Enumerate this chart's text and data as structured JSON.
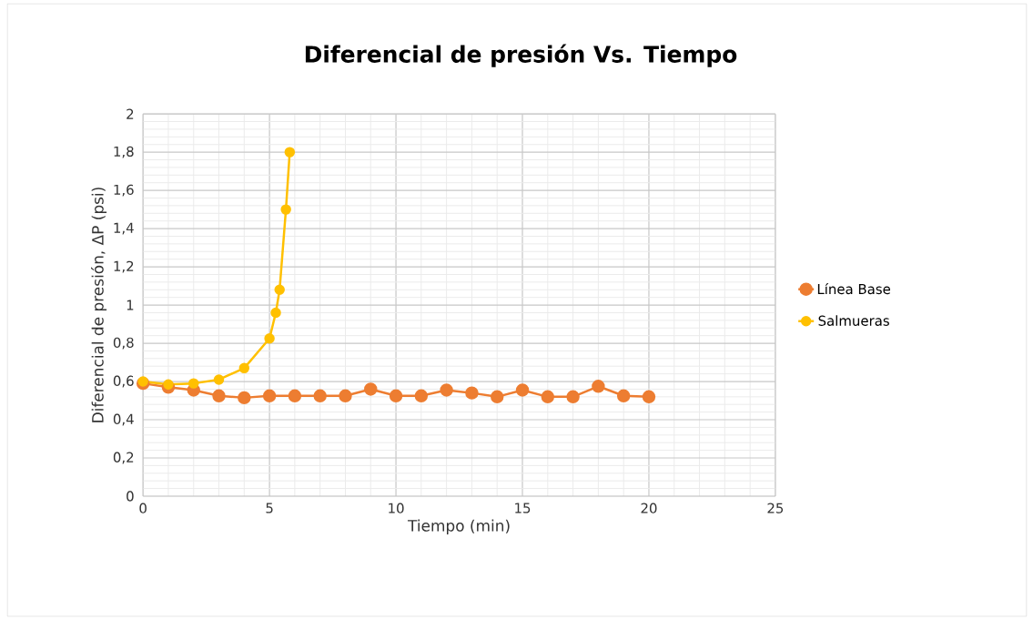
{
  "chart_data": {
    "type": "line",
    "title": "Diferencial de presión Vs. Tiempo",
    "xlabel": "Tiempo (min)",
    "ylabel": "Diferencial de presión, ΔP (psi)",
    "series": [
      {
        "name": "Línea Base",
        "color": "#ed7d31",
        "x": [
          0,
          1,
          2,
          3,
          4,
          5,
          6,
          7,
          8,
          9,
          10,
          11,
          12,
          13,
          14,
          15,
          16,
          17,
          18,
          19,
          20
        ],
        "values": [
          0.59,
          0.57,
          0.555,
          0.525,
          0.515,
          0.525,
          0.525,
          0.525,
          0.525,
          0.56,
          0.525,
          0.525,
          0.555,
          0.54,
          0.52,
          0.555,
          0.52,
          0.52,
          0.575,
          0.525,
          0.52
        ]
      },
      {
        "name": "Salmueras",
        "color": "#ffc000",
        "x": [
          0,
          1,
          2,
          3,
          4,
          5,
          5.25,
          5.4,
          5.65,
          5.8
        ],
        "values": [
          0.6,
          0.585,
          0.59,
          0.61,
          0.67,
          0.825,
          0.96,
          1.08,
          1.5,
          1.8
        ]
      }
    ],
    "xlim": [
      0,
      25
    ],
    "xticks": [
      0,
      5,
      10,
      15,
      20,
      25
    ],
    "ylim": [
      0,
      2
    ],
    "yticks": [
      0,
      {
        "value": 0.2,
        "label": "0,2"
      },
      {
        "value": 0.4,
        "label": "0,4"
      },
      {
        "value": 0.6,
        "label": "0,6"
      },
      {
        "value": 0.8,
        "label": "0,8"
      },
      1,
      {
        "value": 1.2,
        "label": "1,2"
      },
      {
        "value": 1.4,
        "label": "1,4"
      },
      {
        "value": 1.6,
        "label": "1,6"
      },
      {
        "value": 1.8,
        "label": "1,8"
      },
      2
    ],
    "grid": true,
    "legend": "right",
    "marker": "circle",
    "line_style": "solid"
  }
}
